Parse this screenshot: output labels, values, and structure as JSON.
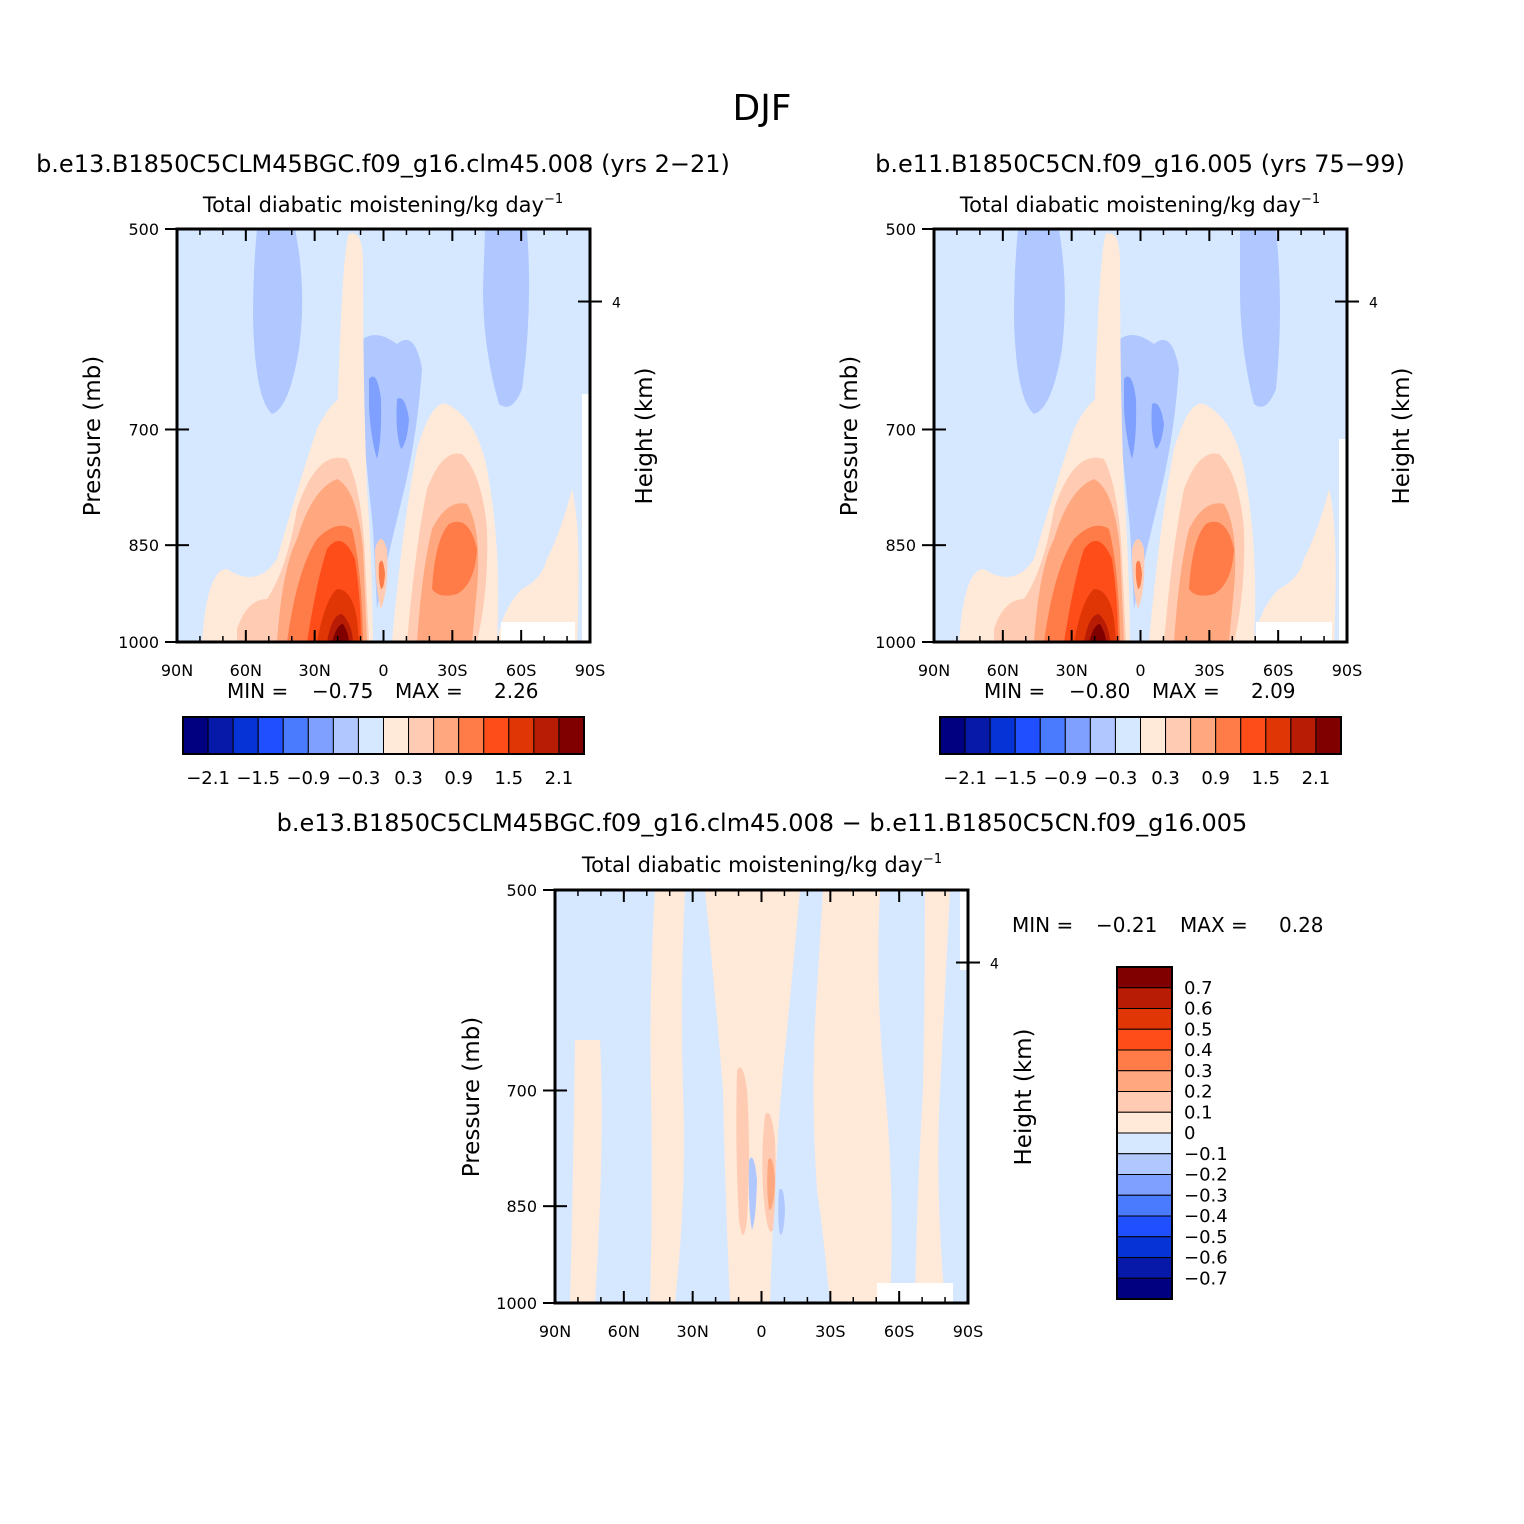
{
  "page_title": "DJF",
  "palette": {
    "main": [
      "#000080",
      "#0619a8",
      "#0633d6",
      "#1f4fff",
      "#4a7bff",
      "#7fa0ff",
      "#b0c8ff",
      "#d6e8ff",
      "#ffe9d8",
      "#ffccb3",
      "#ffa880",
      "#ff7b48",
      "#ff4d1a",
      "#e03505",
      "#b81c05",
      "#800000"
    ],
    "diff": [
      "#000080",
      "#0619a8",
      "#0633d6",
      "#1f4fff",
      "#4a7bff",
      "#7fa0ff",
      "#b0c8ff",
      "#d6e8ff",
      "#ffe9d8",
      "#ffccb3",
      "#ffa880",
      "#ff7b48",
      "#ff4d1a",
      "#e03505",
      "#b81c05",
      "#800000"
    ]
  },
  "chart_data": [
    {
      "id": "panel1",
      "type": "heatmap",
      "title": "b.e13.B1850C5CLM45BGC.f09_g16.clm45.008 (yrs 2−21)",
      "subtitle": "Total diabatic moistening/kg day",
      "subtitle_sup": "−1",
      "ylabel": "Pressure (mb)",
      "y2label": "Height (km)",
      "x_ticks": [
        "90N",
        "60N",
        "30N",
        "0",
        "30S",
        "60S",
        "90S"
      ],
      "y_ticks": [
        "500",
        "700",
        "850",
        "1000"
      ],
      "y2_ticks": [
        "4"
      ],
      "xlim": [
        90,
        -90
      ],
      "ylim": [
        1000,
        500
      ],
      "min_label": "MIN =",
      "min": "−0.75",
      "max_label": "MAX =",
      "max": "2.26",
      "colorbar_labels": [
        "−2.1",
        "−1.5",
        "−0.9",
        "−0.3",
        "0.3",
        "0.9",
        "1.5",
        "2.1"
      ]
    },
    {
      "id": "panel2",
      "type": "heatmap",
      "title": "b.e11.B1850C5CN.f09_g16.005 (yrs 75−99)",
      "subtitle": "Total diabatic moistening/kg day",
      "subtitle_sup": "−1",
      "ylabel": "Pressure (mb)",
      "y2label": "Height (km)",
      "x_ticks": [
        "90N",
        "60N",
        "30N",
        "0",
        "30S",
        "60S",
        "90S"
      ],
      "y_ticks": [
        "500",
        "700",
        "850",
        "1000"
      ],
      "y2_ticks": [
        "4"
      ],
      "xlim": [
        90,
        -90
      ],
      "ylim": [
        1000,
        500
      ],
      "min_label": "MIN =",
      "min": "−0.80",
      "max_label": "MAX =",
      "max": "2.09",
      "colorbar_labels": [
        "−2.1",
        "−1.5",
        "−0.9",
        "−0.3",
        "0.3",
        "0.9",
        "1.5",
        "2.1"
      ]
    },
    {
      "id": "panel3",
      "type": "heatmap",
      "title": "b.e13.B1850C5CLM45BGC.f09_g16.clm45.008 − b.e11.B1850C5CN.f09_g16.005",
      "subtitle": "Total diabatic moistening/kg day",
      "subtitle_sup": "−1",
      "ylabel": "Pressure (mb)",
      "y2label": "Height (km)",
      "x_ticks": [
        "90N",
        "60N",
        "30N",
        "0",
        "30S",
        "60S",
        "90S"
      ],
      "y_ticks": [
        "500",
        "700",
        "850",
        "1000"
      ],
      "y2_ticks": [
        "4"
      ],
      "xlim": [
        90,
        -90
      ],
      "ylim": [
        1000,
        500
      ],
      "min_label": "MIN =",
      "min": "−0.21",
      "max_label": "MAX =",
      "max": "0.28",
      "colorbar_labels": [
        "0.7",
        "0.6",
        "0.5",
        "0.4",
        "0.3",
        "0.2",
        "0.1",
        "0",
        "−0.1",
        "−0.2",
        "−0.3",
        "−0.4",
        "−0.5",
        "−0.6",
        "−0.7"
      ]
    }
  ]
}
